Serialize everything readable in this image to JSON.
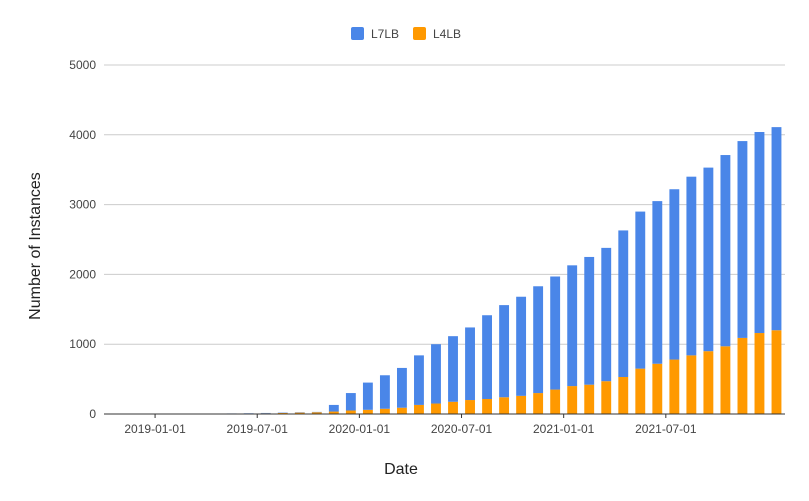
{
  "chart_data": {
    "type": "bar",
    "stacked": true,
    "xlabel": "Date",
    "ylabel": "Number of Instances",
    "ylim": [
      0,
      5000
    ],
    "yticks": [
      0,
      1000,
      2000,
      3000,
      4000,
      5000
    ],
    "xtick_labels": [
      "2019-01-01",
      "2019-07-01",
      "2020-01-01",
      "2020-07-01",
      "2021-01-01",
      "2021-07-01"
    ],
    "grid": "horizontal",
    "legend_position": "top-center",
    "categories": [
      "2018-10",
      "2018-11",
      "2018-12",
      "2019-01",
      "2019-02",
      "2019-03",
      "2019-04",
      "2019-05",
      "2019-06",
      "2019-07",
      "2019-08",
      "2019-09",
      "2019-10",
      "2019-11",
      "2019-12",
      "2020-01",
      "2020-02",
      "2020-03",
      "2020-04",
      "2020-05",
      "2020-06",
      "2020-07",
      "2020-08",
      "2020-09",
      "2020-10",
      "2020-11",
      "2020-12",
      "2021-01",
      "2021-02",
      "2021-03",
      "2021-04",
      "2021-05",
      "2021-06",
      "2021-07",
      "2021-08",
      "2021-09",
      "2021-10",
      "2021-11",
      "2021-12",
      "2022-01"
    ],
    "series": [
      {
        "name": "L4LB",
        "color": "#ff9900",
        "values": [
          2,
          2,
          2,
          2,
          2,
          3,
          3,
          3,
          5,
          10,
          15,
          20,
          25,
          35,
          50,
          60,
          75,
          90,
          130,
          150,
          175,
          200,
          215,
          240,
          260,
          300,
          350,
          400,
          420,
          470,
          530,
          650,
          720,
          780,
          840,
          900,
          970,
          1090,
          1160,
          1200
        ]
      },
      {
        "name": "L7LB",
        "color": "#4a86e8",
        "values": [
          3,
          3,
          3,
          3,
          3,
          4,
          4,
          5,
          5,
          5,
          5,
          5,
          5,
          95,
          250,
          390,
          480,
          570,
          710,
          850,
          940,
          1040,
          1200,
          1320,
          1420,
          1530,
          1620,
          1730,
          1830,
          1910,
          2100,
          2250,
          2330,
          2440,
          2560,
          2630,
          2740,
          2820,
          2880,
          2910
        ]
      }
    ]
  }
}
